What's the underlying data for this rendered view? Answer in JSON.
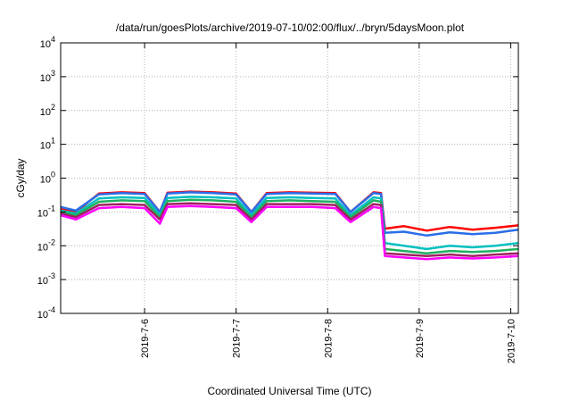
{
  "chart_data": {
    "type": "line",
    "title": "/data/run/goesPlots/archive/2019-07-10/02:00/flux/../bryn/5daysMoon.plot",
    "xlabel": "Coordinated Universal Time (UTC)",
    "ylabel": "cGy/day",
    "yscale": "log",
    "ylim": [
      0.0001,
      10000
    ],
    "y_ticks": [
      {
        "value": 0.0001,
        "base": "10",
        "exp": "-4"
      },
      {
        "value": 0.001,
        "base": "10",
        "exp": "-3"
      },
      {
        "value": 0.01,
        "base": "10",
        "exp": "-2"
      },
      {
        "value": 0.1,
        "base": "10",
        "exp": "-1"
      },
      {
        "value": 1,
        "base": "10",
        "exp": "0"
      },
      {
        "value": 10,
        "base": "10",
        "exp": "1"
      },
      {
        "value": 100,
        "base": "10",
        "exp": "2"
      },
      {
        "value": 1000,
        "base": "10",
        "exp": "3"
      },
      {
        "value": 10000,
        "base": "10",
        "exp": "4"
      }
    ],
    "xlim": [
      "2019-07-05T02:00",
      "2019-07-10T02:00"
    ],
    "x_ticks": [
      {
        "value": "2019-07-06T00:00",
        "label": "2019-7-6"
      },
      {
        "value": "2019-07-07T00:00",
        "label": "2019-7-7"
      },
      {
        "value": "2019-07-08T00:00",
        "label": "2019-7-8"
      },
      {
        "value": "2019-07-09T00:00",
        "label": "2019-7-9"
      },
      {
        "value": "2019-07-10T00:00",
        "label": "2019-7-10"
      }
    ],
    "grid": true,
    "legend": "none",
    "series": [
      {
        "color": "#ff0000",
        "x": [
          "2019-07-05T02:00",
          "2019-07-05T06:00",
          "2019-07-05T12:00",
          "2019-07-05T18:00",
          "2019-07-06T00:00",
          "2019-07-06T04:00",
          "2019-07-06T06:00",
          "2019-07-06T12:00",
          "2019-07-06T18:00",
          "2019-07-07T00:00",
          "2019-07-07T04:00",
          "2019-07-07T08:00",
          "2019-07-07T14:00",
          "2019-07-07T20:00",
          "2019-07-08T02:00",
          "2019-07-08T06:00",
          "2019-07-08T12:00",
          "2019-07-08T14:00",
          "2019-07-08T15:00",
          "2019-07-08T20:00",
          "2019-07-09T02:00",
          "2019-07-09T08:00",
          "2019-07-09T14:00",
          "2019-07-09T20:00",
          "2019-07-10T02:00"
        ],
        "values": [
          0.12,
          0.1,
          0.35,
          0.38,
          0.36,
          0.1,
          0.37,
          0.4,
          0.38,
          0.35,
          0.1,
          0.36,
          0.38,
          0.37,
          0.36,
          0.1,
          0.38,
          0.36,
          0.032,
          0.038,
          0.028,
          0.036,
          0.03,
          0.034,
          0.04
        ]
      },
      {
        "color": "#2a6ee8",
        "x": [
          "2019-07-05T02:00",
          "2019-07-05T06:00",
          "2019-07-05T12:00",
          "2019-07-05T18:00",
          "2019-07-06T00:00",
          "2019-07-06T04:00",
          "2019-07-06T06:00",
          "2019-07-06T12:00",
          "2019-07-06T18:00",
          "2019-07-07T00:00",
          "2019-07-07T04:00",
          "2019-07-07T08:00",
          "2019-07-07T14:00",
          "2019-07-07T20:00",
          "2019-07-08T02:00",
          "2019-07-08T06:00",
          "2019-07-08T12:00",
          "2019-07-08T14:00",
          "2019-07-08T15:00",
          "2019-07-08T20:00",
          "2019-07-09T02:00",
          "2019-07-09T08:00",
          "2019-07-09T14:00",
          "2019-07-09T20:00",
          "2019-07-10T02:00"
        ],
        "values": [
          0.14,
          0.11,
          0.33,
          0.36,
          0.34,
          0.1,
          0.35,
          0.38,
          0.36,
          0.33,
          0.1,
          0.34,
          0.36,
          0.35,
          0.34,
          0.1,
          0.36,
          0.34,
          0.024,
          0.026,
          0.02,
          0.025,
          0.022,
          0.024,
          0.03
        ]
      },
      {
        "color": "#00c0c0",
        "x": [
          "2019-07-05T02:00",
          "2019-07-05T06:00",
          "2019-07-05T12:00",
          "2019-07-05T18:00",
          "2019-07-06T00:00",
          "2019-07-06T04:00",
          "2019-07-06T06:00",
          "2019-07-06T12:00",
          "2019-07-06T18:00",
          "2019-07-07T00:00",
          "2019-07-07T04:00",
          "2019-07-07T08:00",
          "2019-07-07T14:00",
          "2019-07-07T20:00",
          "2019-07-08T02:00",
          "2019-07-08T06:00",
          "2019-07-08T12:00",
          "2019-07-08T14:00",
          "2019-07-08T15:00",
          "2019-07-08T20:00",
          "2019-07-09T02:00",
          "2019-07-09T08:00",
          "2019-07-09T14:00",
          "2019-07-09T20:00",
          "2019-07-10T02:00"
        ],
        "values": [
          0.11,
          0.09,
          0.25,
          0.27,
          0.26,
          0.08,
          0.26,
          0.28,
          0.27,
          0.25,
          0.08,
          0.26,
          0.27,
          0.26,
          0.25,
          0.08,
          0.27,
          0.25,
          0.012,
          0.01,
          0.008,
          0.01,
          0.009,
          0.01,
          0.012
        ]
      },
      {
        "color": "#20b060",
        "x": [
          "2019-07-05T02:00",
          "2019-07-05T06:00",
          "2019-07-05T12:00",
          "2019-07-05T18:00",
          "2019-07-06T00:00",
          "2019-07-06T04:00",
          "2019-07-06T06:00",
          "2019-07-06T12:00",
          "2019-07-06T18:00",
          "2019-07-07T00:00",
          "2019-07-07T04:00",
          "2019-07-07T08:00",
          "2019-07-07T14:00",
          "2019-07-07T20:00",
          "2019-07-08T02:00",
          "2019-07-08T06:00",
          "2019-07-08T12:00",
          "2019-07-08T14:00",
          "2019-07-08T15:00",
          "2019-07-08T20:00",
          "2019-07-09T02:00",
          "2019-07-09T08:00",
          "2019-07-09T14:00",
          "2019-07-09T20:00",
          "2019-07-10T02:00"
        ],
        "values": [
          0.1,
          0.08,
          0.2,
          0.22,
          0.21,
          0.07,
          0.21,
          0.23,
          0.22,
          0.2,
          0.07,
          0.21,
          0.22,
          0.21,
          0.2,
          0.07,
          0.22,
          0.2,
          0.008,
          0.007,
          0.006,
          0.007,
          0.0065,
          0.007,
          0.008
        ]
      },
      {
        "color": "#a02060",
        "x": [
          "2019-07-05T02:00",
          "2019-07-05T06:00",
          "2019-07-05T12:00",
          "2019-07-05T18:00",
          "2019-07-06T00:00",
          "2019-07-06T04:00",
          "2019-07-06T06:00",
          "2019-07-06T12:00",
          "2019-07-06T18:00",
          "2019-07-07T00:00",
          "2019-07-07T04:00",
          "2019-07-07T08:00",
          "2019-07-07T14:00",
          "2019-07-07T20:00",
          "2019-07-08T02:00",
          "2019-07-08T06:00",
          "2019-07-08T12:00",
          "2019-07-08T14:00",
          "2019-07-08T15:00",
          "2019-07-08T20:00",
          "2019-07-09T02:00",
          "2019-07-09T08:00",
          "2019-07-09T14:00",
          "2019-07-09T20:00",
          "2019-07-10T02:00"
        ],
        "values": [
          0.09,
          0.07,
          0.16,
          0.17,
          0.16,
          0.06,
          0.17,
          0.18,
          0.17,
          0.16,
          0.06,
          0.17,
          0.17,
          0.17,
          0.16,
          0.06,
          0.17,
          0.16,
          0.006,
          0.0055,
          0.005,
          0.0055,
          0.005,
          0.0055,
          0.006
        ]
      },
      {
        "color": "#ff00ff",
        "x": [
          "2019-07-05T02:00",
          "2019-07-05T06:00",
          "2019-07-05T12:00",
          "2019-07-05T18:00",
          "2019-07-06T00:00",
          "2019-07-06T04:00",
          "2019-07-06T06:00",
          "2019-07-06T12:00",
          "2019-07-06T18:00",
          "2019-07-07T00:00",
          "2019-07-07T04:00",
          "2019-07-07T08:00",
          "2019-07-07T14:00",
          "2019-07-07T20:00",
          "2019-07-08T02:00",
          "2019-07-08T06:00",
          "2019-07-08T12:00",
          "2019-07-08T14:00",
          "2019-07-08T15:00",
          "2019-07-08T20:00",
          "2019-07-09T02:00",
          "2019-07-09T08:00",
          "2019-07-09T14:00",
          "2019-07-09T20:00",
          "2019-07-10T02:00"
        ],
        "values": [
          0.08,
          0.06,
          0.13,
          0.14,
          0.13,
          0.045,
          0.14,
          0.15,
          0.14,
          0.13,
          0.05,
          0.14,
          0.14,
          0.14,
          0.13,
          0.05,
          0.14,
          0.13,
          0.005,
          0.0045,
          0.004,
          0.0045,
          0.0042,
          0.0045,
          0.005
        ]
      }
    ]
  }
}
